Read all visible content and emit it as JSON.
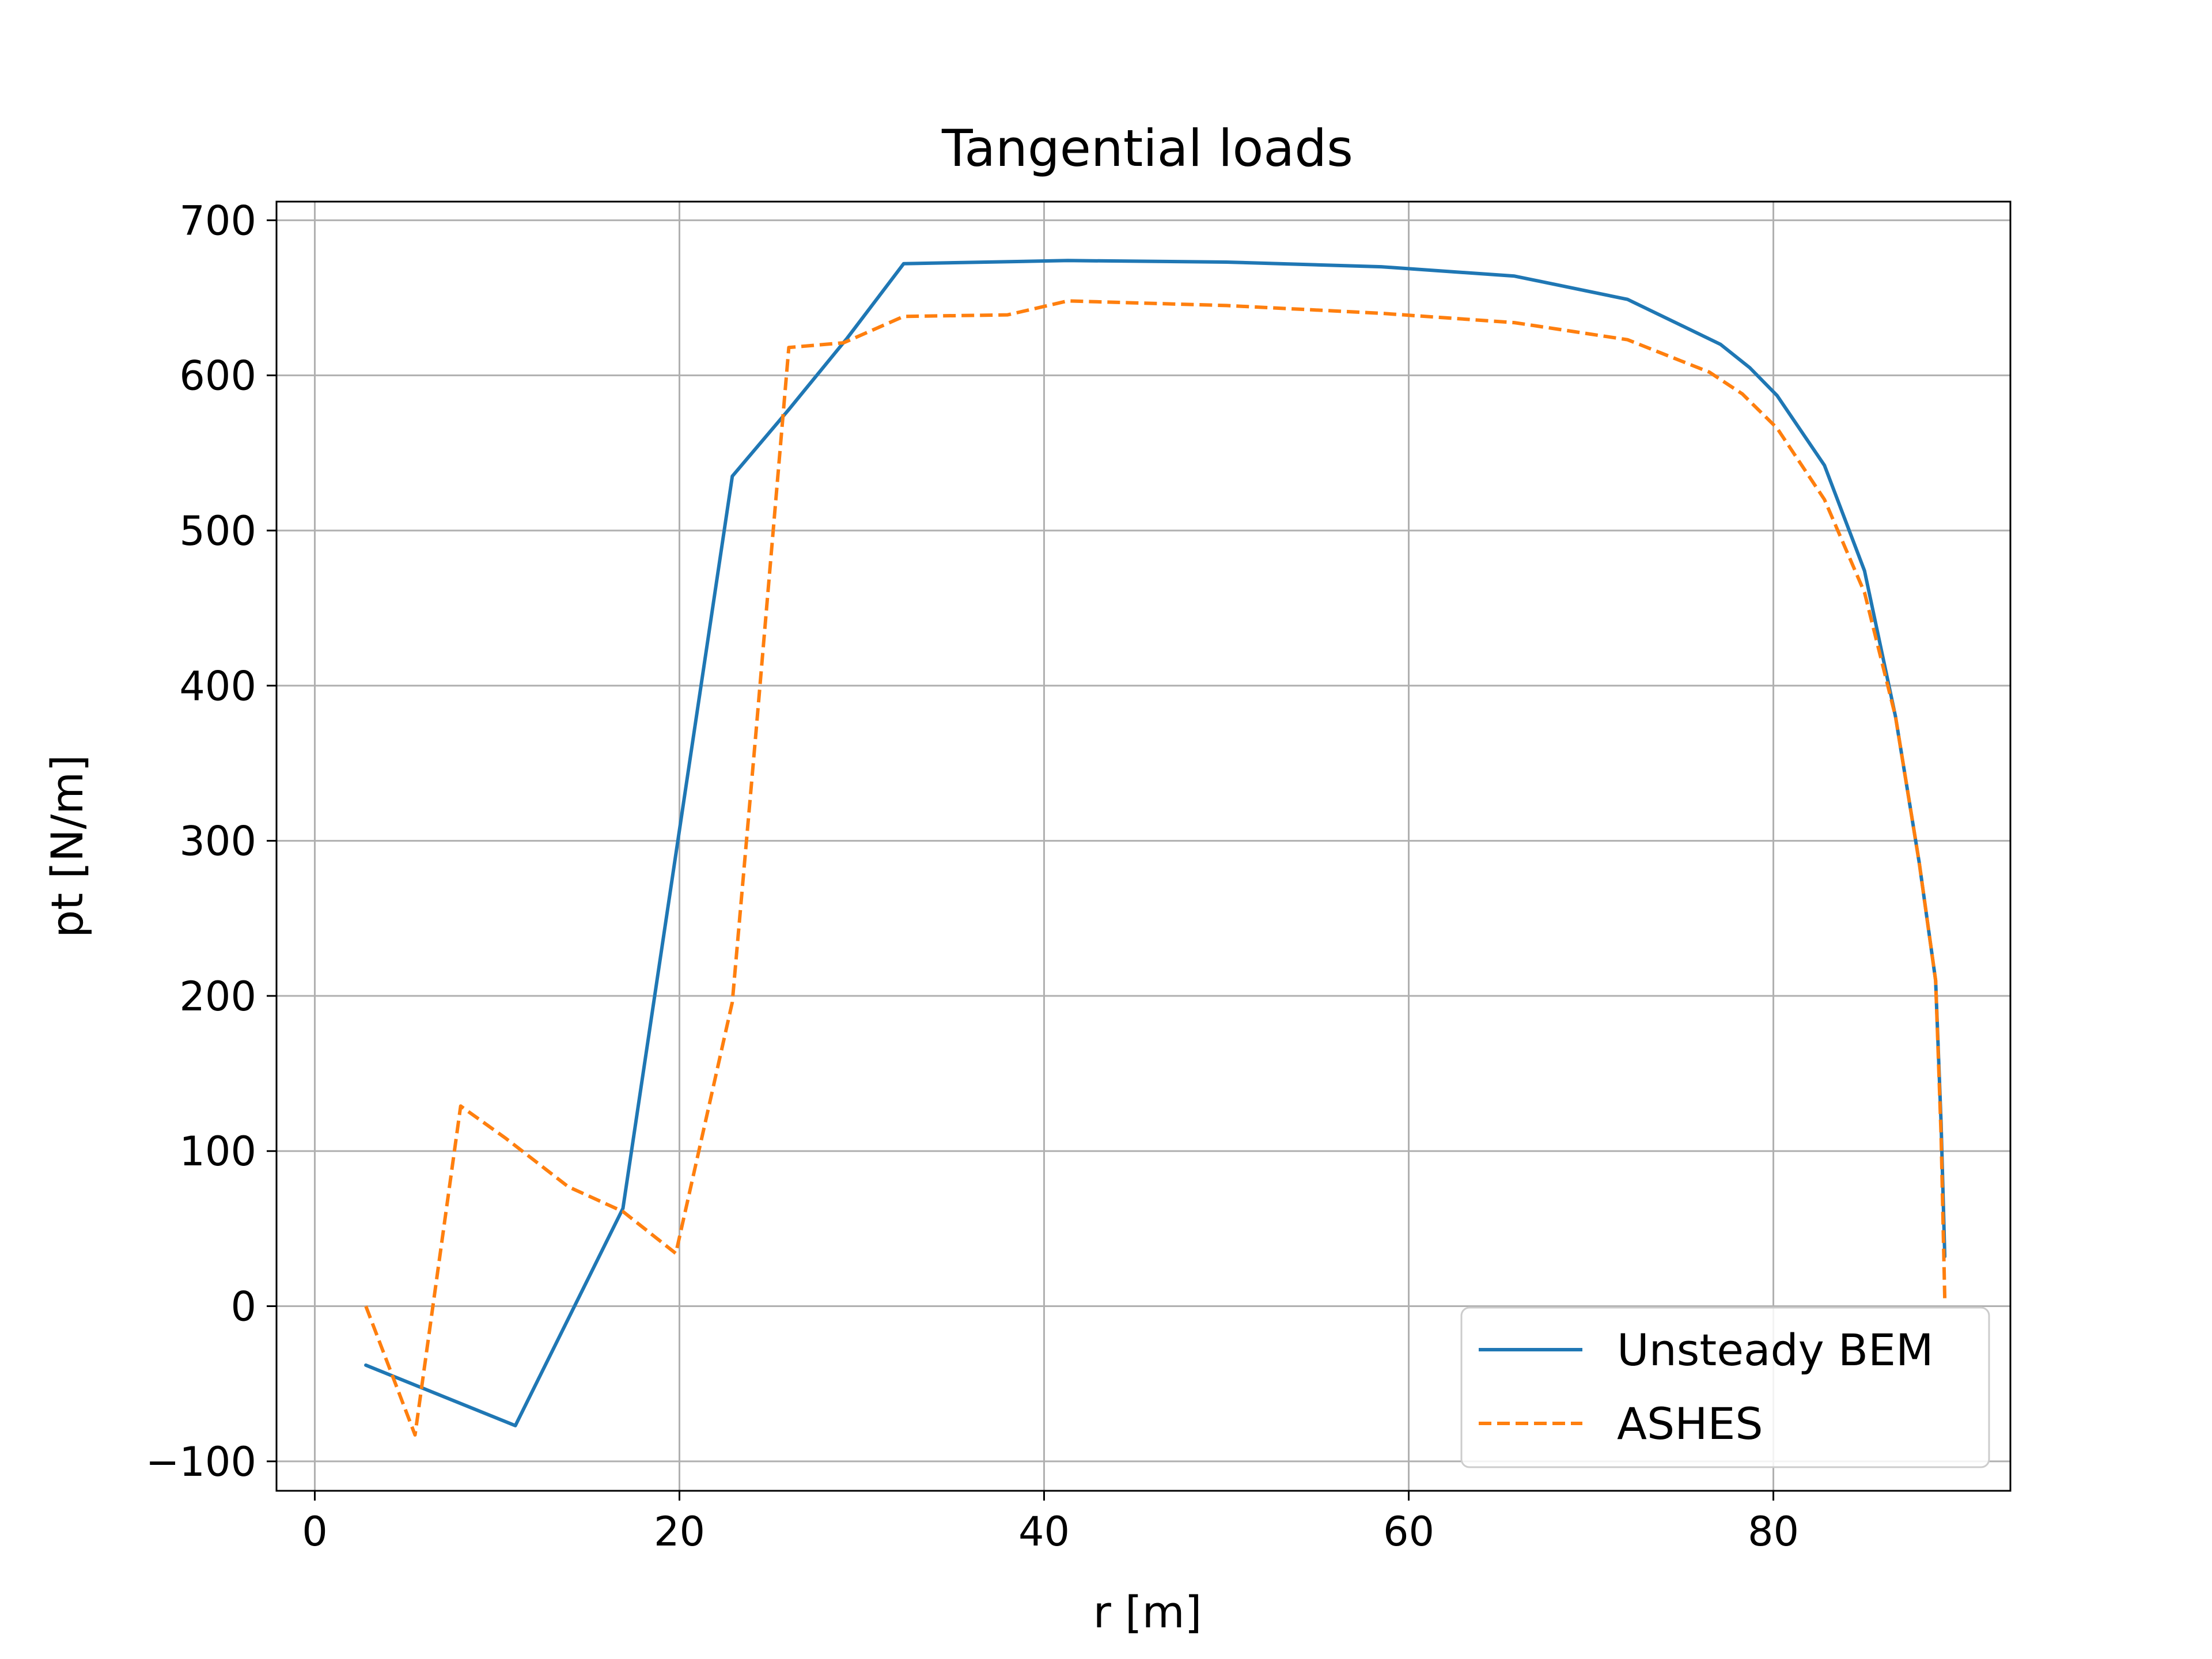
{
  "chart_data": {
    "type": "line",
    "title": "Tangential loads",
    "xlabel": "r [m]",
    "ylabel": "pt [N/m]",
    "xlim": [
      -2.1,
      93.0
    ],
    "ylim": [
      -119,
      712
    ],
    "xticks": [
      0,
      20,
      40,
      60,
      80
    ],
    "xtick_labels": [
      "0",
      "20",
      "40",
      "60",
      "80"
    ],
    "yticks": [
      -100,
      0,
      100,
      200,
      300,
      400,
      500,
      600,
      700
    ],
    "ytick_labels": [
      "−100",
      "0",
      "100",
      "200",
      "300",
      "400",
      "500",
      "600",
      "700"
    ],
    "grid": true,
    "legend_position": "lower-right",
    "series": [
      {
        "name": "Unsteady BEM",
        "color": "#1f77b4",
        "style": "solid",
        "x": [
          2.8,
          11.0,
          16.9,
          22.9,
          26.0,
          29.2,
          32.3,
          41.3,
          50.0,
          58.5,
          65.8,
          72.0,
          77.1,
          78.7,
          80.2,
          82.8,
          85.0,
          86.7,
          88.0,
          88.9,
          89.2,
          89.4
        ],
        "y": [
          -38,
          -77,
          63,
          535,
          578,
          624,
          672,
          674,
          673,
          670,
          664,
          649,
          620,
          605,
          587,
          542,
          474,
          380,
          286,
          210,
          118,
          32
        ]
      },
      {
        "name": "ASHES",
        "color": "#ff7f0e",
        "style": "dashed",
        "x": [
          2.8,
          5.5,
          8.0,
          10.5,
          13.9,
          16.9,
          19.8,
          22.9,
          24.2,
          26.0,
          29.0,
          32.3,
          38.0,
          41.3,
          50.0,
          58.5,
          65.8,
          72.0,
          76.5,
          78.3,
          80.2,
          82.8,
          85.0,
          86.7,
          88.0,
          88.9,
          89.2,
          89.4
        ],
        "y": [
          0,
          -83,
          129,
          108,
          77,
          61,
          34,
          196,
          370,
          618,
          621,
          638,
          639,
          648,
          645,
          640,
          634,
          623,
          602,
          588,
          566,
          520,
          460,
          380,
          286,
          210,
          110,
          5
        ]
      }
    ]
  }
}
